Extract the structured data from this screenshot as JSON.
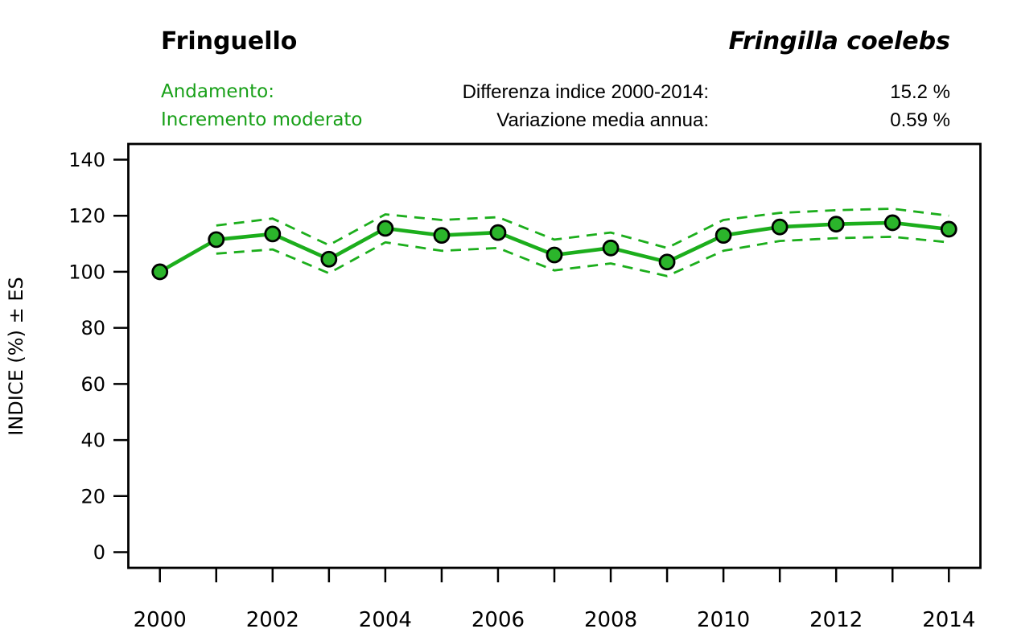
{
  "header": {
    "title": "Fringuello",
    "species": "Fringilla coelebs",
    "trend_label": "Andamento:",
    "trend_value": "Incremento moderato",
    "diff_label": "Differenza indice 2000-2014:",
    "diff_value": "15.2 %",
    "var_label": "Variazione media annua:",
    "var_value": "0.59 %"
  },
  "colors": {
    "line_green": "#1cae1c",
    "marker_green": "#2bb52b",
    "marker_outline": "#000000",
    "text_green": "#18a018",
    "axis_black": "#000000",
    "background": "#ffffff"
  },
  "chart_data": {
    "type": "line",
    "title": "",
    "xlabel": "",
    "ylabel": "INDICE (%) ± ES",
    "x": [
      2000,
      2001,
      2002,
      2003,
      2004,
      2005,
      2006,
      2007,
      2008,
      2009,
      2010,
      2011,
      2012,
      2013,
      2014
    ],
    "series": [
      {
        "name": "Indice",
        "style": "solid-markers",
        "values": [
          100,
          111.5,
          113.5,
          104.5,
          115.5,
          113,
          114,
          106,
          108.5,
          103.5,
          113,
          116,
          117,
          117.5,
          115.2
        ]
      },
      {
        "name": "Indice + ES",
        "style": "dashed",
        "values": [
          null,
          116.5,
          119,
          109.5,
          120.5,
          118.5,
          119.5,
          111.5,
          114,
          108.5,
          118.5,
          121,
          122,
          122.5,
          120
        ]
      },
      {
        "name": "Indice - ES",
        "style": "dashed",
        "values": [
          null,
          106.5,
          108,
          99.5,
          110.5,
          107.5,
          108.5,
          100.5,
          103,
          98.5,
          107.5,
          111,
          112,
          112.5,
          110.5
        ]
      }
    ],
    "ylim": [
      0,
      140
    ],
    "yticks": [
      0,
      20,
      40,
      60,
      80,
      100,
      120,
      140
    ],
    "xtick_labels": [
      2000,
      2002,
      2004,
      2006,
      2008,
      2010,
      2012,
      2014
    ],
    "grid": false,
    "legend_position": "none"
  }
}
